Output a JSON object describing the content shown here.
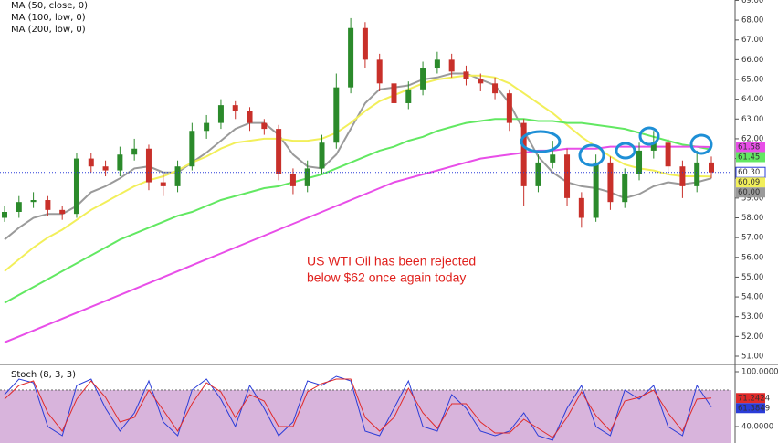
{
  "chart_data": [
    {
      "type": "candlestick",
      "ylim": [
        50.63,
        69.02
      ],
      "yticks": [
        {
          "value": 51,
          "label": "51.00"
        },
        {
          "value": 52,
          "label": "52.00"
        },
        {
          "value": 53,
          "label": "53.00"
        },
        {
          "value": 54,
          "label": "54.00"
        },
        {
          "value": 55,
          "label": "55.00"
        },
        {
          "value": 56,
          "label": "56.00"
        },
        {
          "value": 57,
          "label": "57.00"
        },
        {
          "value": 58,
          "label": "58.00"
        },
        {
          "value": 59,
          "label": "59.00"
        },
        {
          "value": 60,
          "label": "60.00"
        },
        {
          "value": 61,
          "label": "61.00"
        },
        {
          "value": 62,
          "label": "62.00"
        },
        {
          "value": 63,
          "label": "63.00"
        },
        {
          "value": 64,
          "label": "64.00"
        },
        {
          "value": 65,
          "label": "65.00"
        },
        {
          "value": 66,
          "label": "66.00"
        },
        {
          "value": 67,
          "label": "67.00"
        },
        {
          "value": 68,
          "label": "68.00"
        },
        {
          "value": 69,
          "label": "69.00"
        }
      ],
      "up_color": "#2b8a2b",
      "down_color": "#c8302a",
      "open": [
        58.0,
        58.3,
        58.8,
        58.9,
        58.4,
        58.2,
        61.0,
        60.6,
        60.4,
        61.2,
        61.5,
        59.8,
        59.6,
        60.6,
        62.4,
        62.8,
        63.7,
        63.4,
        62.8,
        62.5,
        60.2,
        59.6,
        60.5,
        61.8,
        64.6,
        67.6,
        66.0,
        64.8,
        63.8,
        64.5,
        65.6,
        66.0,
        65.4,
        65.0,
        64.8,
        64.3,
        62.8,
        59.6,
        60.8,
        61.2,
        59.0,
        58.0,
        60.8,
        58.8,
        60.2,
        61.4,
        61.8,
        60.6,
        59.6,
        60.8
      ],
      "high": [
        58.6,
        59.1,
        59.3,
        59.1,
        58.6,
        61.3,
        61.3,
        60.9,
        61.6,
        62.0,
        61.7,
        60.2,
        60.9,
        62.8,
        63.2,
        64.0,
        63.9,
        63.6,
        63.0,
        62.7,
        60.5,
        60.9,
        62.2,
        65.3,
        68.1,
        67.9,
        66.3,
        65.1,
        64.9,
        65.9,
        66.4,
        66.3,
        65.7,
        65.3,
        65.1,
        64.5,
        63.0,
        61.2,
        61.9,
        61.5,
        59.3,
        61.2,
        61.1,
        60.5,
        61.8,
        62.4,
        62.0,
        60.9,
        61.4,
        61.1
      ],
      "low": [
        57.8,
        58.0,
        58.5,
        58.1,
        57.9,
        58.0,
        60.3,
        60.1,
        60.1,
        60.9,
        59.4,
        59.1,
        59.3,
        60.4,
        62.0,
        62.5,
        63.0,
        62.4,
        62.2,
        59.9,
        59.2,
        59.3,
        60.2,
        61.5,
        64.3,
        65.6,
        64.4,
        63.4,
        63.5,
        64.2,
        65.3,
        65.1,
        64.7,
        64.4,
        64.0,
        62.4,
        58.6,
        59.3,
        60.5,
        58.6,
        57.5,
        57.8,
        58.4,
        58.5,
        59.9,
        61.0,
        60.3,
        59.0,
        59.3,
        60.0
      ],
      "close": [
        58.3,
        58.8,
        58.9,
        58.4,
        58.2,
        61.0,
        60.6,
        60.4,
        61.2,
        61.5,
        59.8,
        59.6,
        60.6,
        62.4,
        62.8,
        63.7,
        63.4,
        62.8,
        62.5,
        60.2,
        59.6,
        60.5,
        61.8,
        64.6,
        67.6,
        66.0,
        64.8,
        63.8,
        64.5,
        65.6,
        66.0,
        65.4,
        65.0,
        64.8,
        64.3,
        62.8,
        59.6,
        60.8,
        61.2,
        59.0,
        58.0,
        60.8,
        58.8,
        60.2,
        61.4,
        61.8,
        60.6,
        59.6,
        60.8,
        60.3
      ],
      "last_price": {
        "value": 60.3,
        "label": "60.30"
      },
      "series": [
        {
          "name": "MA (50, close, 0)",
          "color": "#9a9a9a",
          "last_label": "60.00",
          "values": [
            56.9,
            57.5,
            58.0,
            58.2,
            58.2,
            58.6,
            59.3,
            59.6,
            60.0,
            60.5,
            60.6,
            60.3,
            60.3,
            60.8,
            61.3,
            61.9,
            62.5,
            62.8,
            62.8,
            62.2,
            61.2,
            60.6,
            60.5,
            61.2,
            62.5,
            63.8,
            64.5,
            64.6,
            64.7,
            65.0,
            65.1,
            65.3,
            65.3,
            65.0,
            64.7,
            63.8,
            62.4,
            61.1,
            60.3,
            59.8,
            59.6,
            59.5,
            59.3,
            59.0,
            59.2,
            59.6,
            59.8,
            59.7,
            59.8,
            60.0
          ]
        },
        {
          "name": "MA (100, low, 0)",
          "color": "#f2ef5a",
          "last_label": "60.09",
          "values": [
            55.3,
            55.9,
            56.5,
            57.0,
            57.4,
            57.9,
            58.4,
            58.8,
            59.2,
            59.6,
            59.9,
            60.1,
            60.4,
            60.8,
            61.1,
            61.5,
            61.8,
            61.9,
            62.0,
            62.0,
            61.9,
            61.9,
            62.0,
            62.3,
            62.8,
            63.4,
            63.9,
            64.2,
            64.5,
            64.8,
            65.0,
            65.1,
            65.2,
            65.2,
            65.1,
            64.8,
            64.3,
            63.8,
            63.3,
            62.7,
            62.1,
            61.6,
            61.1,
            60.7,
            60.5,
            60.4,
            60.2,
            60.1,
            60.1,
            60.09
          ]
        },
        {
          "name": "MA (200, low, 0)",
          "color": "#62e862",
          "last_label": "61.45",
          "values": [
            53.7,
            54.1,
            54.5,
            54.9,
            55.3,
            55.7,
            56.1,
            56.5,
            56.9,
            57.2,
            57.5,
            57.8,
            58.1,
            58.3,
            58.6,
            58.9,
            59.1,
            59.3,
            59.5,
            59.6,
            59.8,
            60.0,
            60.2,
            60.5,
            60.8,
            61.1,
            61.4,
            61.6,
            61.9,
            62.1,
            62.4,
            62.6,
            62.8,
            62.9,
            63.0,
            63.0,
            63.0,
            62.9,
            62.9,
            62.8,
            62.8,
            62.7,
            62.6,
            62.5,
            62.3,
            62.1,
            61.9,
            61.7,
            61.6,
            61.45
          ]
        },
        {
          "color": "#e84ee8",
          "last_label": "61.58",
          "values": [
            51.7,
            52.0,
            52.3,
            52.6,
            52.9,
            53.2,
            53.5,
            53.8,
            54.1,
            54.4,
            54.7,
            55.0,
            55.3,
            55.6,
            55.9,
            56.2,
            56.5,
            56.8,
            57.1,
            57.4,
            57.7,
            58.0,
            58.3,
            58.6,
            58.9,
            59.2,
            59.5,
            59.8,
            60.0,
            60.2,
            60.4,
            60.6,
            60.8,
            61.0,
            61.1,
            61.2,
            61.3,
            61.4,
            61.4,
            61.5,
            61.5,
            61.5,
            61.6,
            61.6,
            61.6,
            61.6,
            61.6,
            61.6,
            61.6,
            61.58
          ]
        }
      ],
      "annotation": [
        "US WTI Oil has been rejected",
        "below $62 once again today"
      ]
    },
    {
      "type": "line",
      "title": "Stoch (8, 3, 3)",
      "ylim": [
        22,
        105
      ],
      "yticks": [
        {
          "value": 100,
          "label": "100.0000"
        },
        {
          "value": 40,
          "label": "40.0000"
        }
      ],
      "levels": [
        80,
        20
      ],
      "series": [
        {
          "color": "#2a3cd8",
          "last_label": "61.3849",
          "values": [
            75,
            92,
            88,
            40,
            30,
            85,
            92,
            60,
            35,
            55,
            90,
            45,
            30,
            80,
            92,
            70,
            40,
            85,
            60,
            30,
            45,
            90,
            85,
            95,
            90,
            35,
            30,
            60,
            90,
            40,
            35,
            75,
            60,
            35,
            30,
            35,
            55,
            30,
            25,
            60,
            85,
            40,
            30,
            80,
            70,
            85,
            40,
            30,
            85,
            61.3849
          ]
        },
        {
          "color": "#e02a2a",
          "last_label": "71.2424",
          "values": [
            70,
            85,
            90,
            55,
            35,
            70,
            90,
            72,
            45,
            50,
            80,
            58,
            35,
            65,
            88,
            78,
            50,
            75,
            68,
            40,
            40,
            78,
            87,
            92,
            92,
            50,
            35,
            50,
            82,
            55,
            38,
            65,
            65,
            45,
            33,
            33,
            48,
            38,
            28,
            50,
            78,
            52,
            35,
            68,
            72,
            80,
            55,
            35,
            70,
            71.2424
          ]
        }
      ]
    }
  ]
}
